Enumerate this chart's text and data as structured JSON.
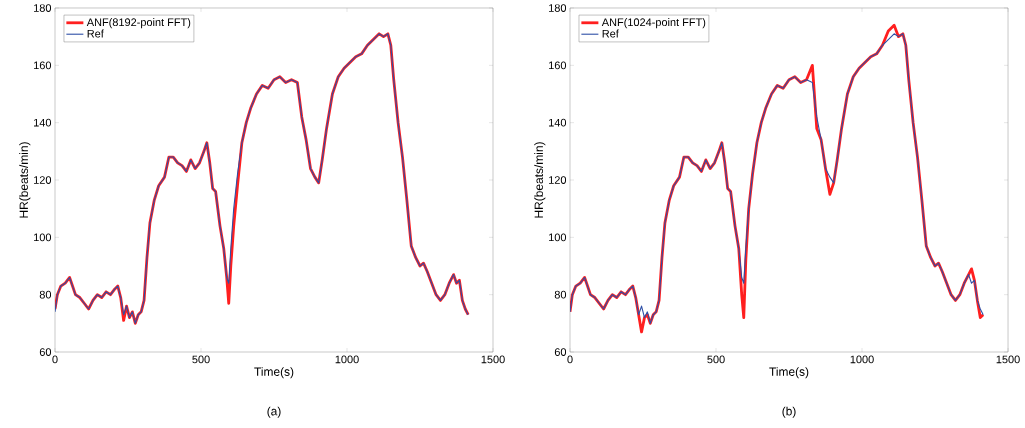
{
  "chart_data": [
    {
      "type": "line",
      "xlabel": "Time(s)",
      "ylabel": "HR(beats/min)",
      "annotations": [
        "(a)"
      ],
      "xlim": [
        0,
        1500
      ],
      "xticks": [
        0,
        500,
        1000,
        1500
      ],
      "ylim": [
        60,
        180
      ],
      "yticks": [
        60,
        80,
        100,
        120,
        140,
        160,
        180
      ],
      "legend": "top left",
      "series": [
        {
          "name": "ANF(8192-point FFT)",
          "color": "#ff1f1f",
          "x": [
            0,
            8,
            20,
            35,
            50,
            60,
            70,
            85,
            100,
            115,
            130,
            145,
            160,
            175,
            190,
            205,
            215,
            225,
            235,
            245,
            255,
            265,
            275,
            285,
            295,
            305,
            315,
            325,
            340,
            355,
            375,
            390,
            405,
            420,
            435,
            450,
            465,
            480,
            495,
            510,
            520,
            530,
            540,
            550,
            565,
            578,
            588,
            595,
            602,
            612,
            625,
            640,
            655,
            670,
            690,
            710,
            730,
            750,
            770,
            790,
            810,
            830,
            845,
            860,
            875,
            890,
            903,
            915,
            930,
            950,
            970,
            990,
            1010,
            1030,
            1050,
            1070,
            1090,
            1110,
            1125,
            1140,
            1150,
            1160,
            1175,
            1190,
            1205,
            1220,
            1235,
            1250,
            1262,
            1275,
            1290,
            1305,
            1320,
            1335,
            1350,
            1365,
            1375,
            1385,
            1395,
            1405,
            1415
          ],
          "values": [
            75,
            80,
            83,
            84,
            86,
            83,
            80,
            79,
            77,
            75,
            78,
            80,
            79,
            81,
            80,
            82,
            83,
            79,
            71,
            76,
            72,
            74,
            70,
            73,
            74,
            78,
            93,
            105,
            113,
            118,
            121,
            128,
            128,
            126,
            125,
            123,
            127,
            124,
            126,
            130,
            133,
            126,
            117,
            116,
            104,
            96,
            86,
            77,
            90,
            104,
            118,
            133,
            140,
            145,
            150,
            153,
            152,
            155,
            156,
            154,
            155,
            154,
            142,
            134,
            124,
            121,
            119,
            127,
            138,
            150,
            156,
            159,
            161,
            163,
            164,
            167,
            169,
            171,
            170,
            171,
            167,
            155,
            140,
            128,
            113,
            97,
            93,
            90,
            91,
            88,
            84,
            80,
            78,
            80,
            84,
            87,
            84,
            85,
            78,
            75,
            73
          ]
        },
        {
          "name": "Ref",
          "color": "#2e4fa6",
          "x": [
            0,
            8,
            20,
            35,
            50,
            60,
            70,
            85,
            100,
            115,
            130,
            145,
            160,
            175,
            190,
            205,
            215,
            225,
            235,
            245,
            255,
            265,
            275,
            285,
            295,
            305,
            315,
            325,
            340,
            355,
            375,
            390,
            405,
            420,
            435,
            450,
            465,
            480,
            495,
            510,
            520,
            530,
            540,
            550,
            565,
            578,
            588,
            595,
            602,
            612,
            625,
            640,
            655,
            670,
            690,
            710,
            730,
            750,
            770,
            790,
            810,
            830,
            845,
            860,
            875,
            890,
            903,
            915,
            930,
            950,
            970,
            990,
            1010,
            1030,
            1050,
            1070,
            1090,
            1110,
            1125,
            1140,
            1150,
            1160,
            1175,
            1190,
            1205,
            1220,
            1235,
            1250,
            1262,
            1275,
            1290,
            1305,
            1320,
            1335,
            1350,
            1365,
            1375,
            1385,
            1395,
            1405,
            1415
          ],
          "values": [
            74,
            80,
            83,
            84,
            86,
            83,
            80,
            79,
            77,
            75,
            78,
            80,
            79,
            81,
            80,
            82,
            83,
            79,
            73,
            76,
            72,
            74,
            70,
            73,
            74,
            78,
            93,
            105,
            113,
            118,
            121,
            128,
            128,
            126,
            125,
            123,
            127,
            124,
            126,
            130,
            133,
            126,
            117,
            116,
            104,
            96,
            86,
            84,
            96,
            110,
            122,
            133,
            140,
            145,
            150,
            153,
            152,
            155,
            156,
            154,
            155,
            154,
            142,
            134,
            124,
            121,
            119,
            127,
            138,
            150,
            156,
            159,
            161,
            163,
            164,
            167,
            169,
            171,
            170,
            171,
            167,
            155,
            140,
            128,
            113,
            97,
            93,
            90,
            91,
            88,
            84,
            80,
            78,
            80,
            84,
            87,
            84,
            85,
            78,
            75,
            73
          ]
        }
      ]
    },
    {
      "type": "line",
      "xlabel": "Time(s)",
      "ylabel": "HR(beats/min)",
      "annotations": [
        "(b)"
      ],
      "xlim": [
        0,
        1500
      ],
      "xticks": [
        0,
        500,
        1000,
        1500
      ],
      "ylim": [
        60,
        180
      ],
      "yticks": [
        60,
        80,
        100,
        120,
        140,
        160,
        180
      ],
      "legend": "top left",
      "series": [
        {
          "name": "ANF(1024-point FFT)",
          "color": "#ff1f1f",
          "x": [
            0,
            8,
            20,
            35,
            50,
            60,
            70,
            85,
            100,
            115,
            130,
            145,
            160,
            175,
            190,
            205,
            215,
            225,
            235,
            245,
            255,
            265,
            275,
            285,
            295,
            305,
            315,
            325,
            340,
            355,
            375,
            390,
            405,
            420,
            435,
            450,
            465,
            480,
            495,
            510,
            520,
            530,
            540,
            550,
            565,
            578,
            588,
            595,
            602,
            612,
            625,
            640,
            655,
            670,
            690,
            710,
            730,
            750,
            770,
            790,
            810,
            830,
            845,
            860,
            875,
            890,
            903,
            915,
            930,
            950,
            970,
            990,
            1010,
            1030,
            1050,
            1070,
            1090,
            1110,
            1125,
            1140,
            1150,
            1160,
            1175,
            1190,
            1205,
            1220,
            1235,
            1250,
            1262,
            1275,
            1290,
            1305,
            1320,
            1335,
            1350,
            1365,
            1375,
            1385,
            1395,
            1405,
            1415
          ],
          "values": [
            74,
            80,
            83,
            84,
            86,
            83,
            80,
            79,
            77,
            75,
            78,
            80,
            79,
            81,
            80,
            82,
            83,
            79,
            73,
            67,
            72,
            73,
            70,
            73,
            74,
            78,
            93,
            105,
            113,
            118,
            121,
            128,
            128,
            126,
            125,
            123,
            127,
            124,
            126,
            130,
            133,
            126,
            117,
            116,
            104,
            96,
            80,
            72,
            92,
            110,
            122,
            133,
            140,
            145,
            150,
            153,
            152,
            155,
            156,
            154,
            155,
            160,
            138,
            134,
            124,
            115,
            119,
            127,
            138,
            150,
            156,
            159,
            161,
            163,
            164,
            167,
            172,
            174,
            170,
            171,
            167,
            155,
            140,
            128,
            113,
            97,
            93,
            90,
            91,
            88,
            84,
            80,
            78,
            80,
            84,
            87,
            89,
            85,
            78,
            72,
            73
          ]
        },
        {
          "name": "Ref",
          "color": "#2e4fa6",
          "x": [
            0,
            8,
            20,
            35,
            50,
            60,
            70,
            85,
            100,
            115,
            130,
            145,
            160,
            175,
            190,
            205,
            215,
            225,
            235,
            245,
            255,
            265,
            275,
            285,
            295,
            305,
            315,
            325,
            340,
            355,
            375,
            390,
            405,
            420,
            435,
            450,
            465,
            480,
            495,
            510,
            520,
            530,
            540,
            550,
            565,
            578,
            588,
            595,
            602,
            612,
            625,
            640,
            655,
            670,
            690,
            710,
            730,
            750,
            770,
            790,
            810,
            830,
            845,
            860,
            875,
            890,
            903,
            915,
            930,
            950,
            970,
            990,
            1010,
            1030,
            1050,
            1070,
            1090,
            1110,
            1125,
            1140,
            1150,
            1160,
            1175,
            1190,
            1205,
            1220,
            1235,
            1250,
            1262,
            1275,
            1290,
            1305,
            1320,
            1335,
            1350,
            1365,
            1375,
            1385,
            1395,
            1405,
            1415
          ],
          "values": [
            74,
            80,
            83,
            84,
            86,
            83,
            80,
            79,
            77,
            75,
            78,
            80,
            79,
            81,
            80,
            82,
            83,
            79,
            73,
            76,
            72,
            74,
            70,
            73,
            74,
            78,
            93,
            105,
            113,
            118,
            121,
            128,
            128,
            126,
            125,
            123,
            127,
            124,
            126,
            130,
            133,
            126,
            117,
            116,
            104,
            96,
            86,
            84,
            96,
            110,
            122,
            133,
            140,
            145,
            150,
            153,
            152,
            155,
            156,
            154,
            155,
            154,
            142,
            134,
            124,
            121,
            119,
            127,
            138,
            150,
            156,
            159,
            161,
            163,
            164,
            167,
            169,
            171,
            170,
            171,
            167,
            155,
            140,
            128,
            113,
            97,
            93,
            90,
            91,
            88,
            84,
            80,
            78,
            80,
            84,
            87,
            84,
            85,
            78,
            75,
            73
          ]
        }
      ]
    }
  ]
}
